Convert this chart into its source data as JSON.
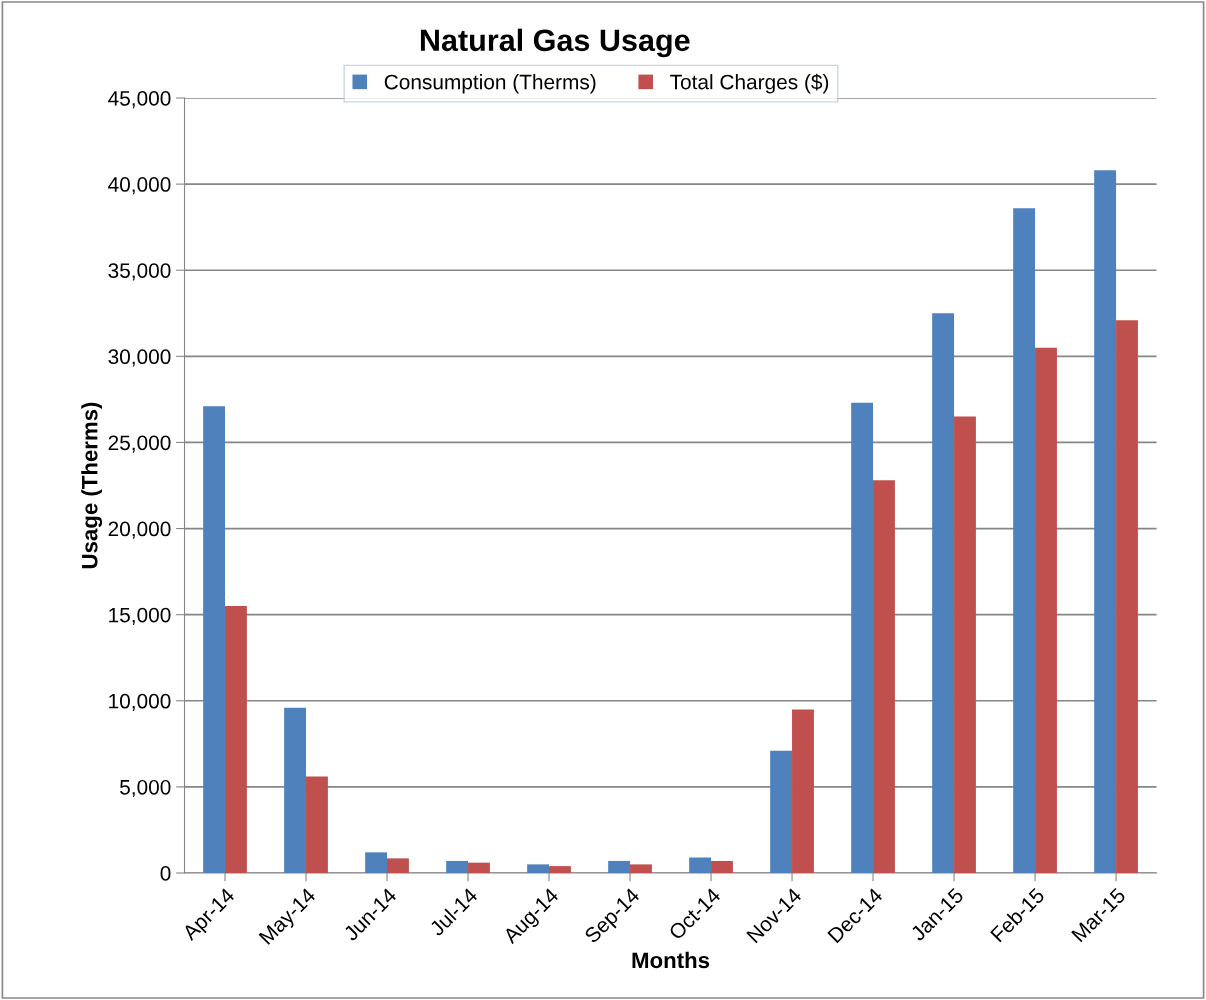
{
  "chart_data": {
    "type": "bar",
    "title": "Natural Gas Usage",
    "xlabel": "Months",
    "ylabel": "Usage (Therms)",
    "categories": [
      "Apr-14",
      "May-14",
      "Jun-14",
      "Jul-14",
      "Aug-14",
      "Sep-14",
      "Oct-14",
      "Nov-14",
      "Dec-14",
      "Jan-15",
      "Feb-15",
      "Mar-15"
    ],
    "series": [
      {
        "name": "Consumption (Therms)",
        "color": "#4f81bd",
        "values": [
          27100,
          9600,
          1200,
          700,
          500,
          700,
          900,
          7100,
          27300,
          32500,
          38600,
          40800
        ]
      },
      {
        "name": "Total Charges ($)",
        "color": "#c0504d",
        "values": [
          15500,
          5600,
          850,
          600,
          400,
          500,
          700,
          9500,
          22800,
          26500,
          30500,
          32100
        ]
      }
    ],
    "ylim": [
      0,
      45000
    ],
    "yticks": [
      {
        "value": 0,
        "label": "0"
      },
      {
        "value": 5000,
        "label": "5,000"
      },
      {
        "value": 10000,
        "label": "10,000"
      },
      {
        "value": 15000,
        "label": "15,000"
      },
      {
        "value": 20000,
        "label": "20,000"
      },
      {
        "value": 25000,
        "label": "25,000"
      },
      {
        "value": 30000,
        "label": "30,000"
      },
      {
        "value": 35000,
        "label": "35,000"
      },
      {
        "value": 40000,
        "label": "40,000"
      },
      {
        "value": 45000,
        "label": "45,000"
      }
    ],
    "grid": "y",
    "legend": "top"
  }
}
